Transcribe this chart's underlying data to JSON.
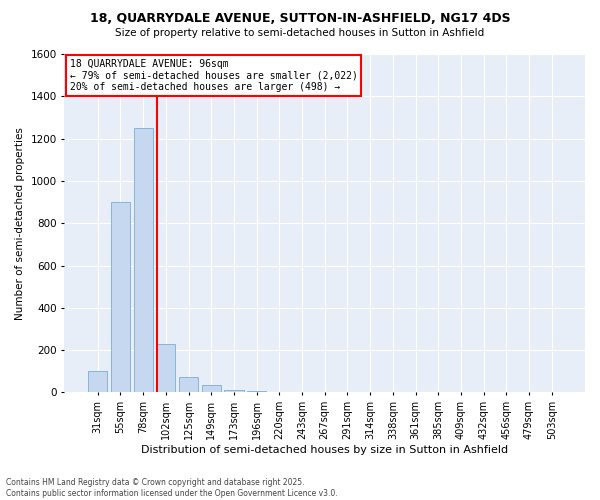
{
  "title1": "18, QUARRYDALE AVENUE, SUTTON-IN-ASHFIELD, NG17 4DS",
  "title2": "Size of property relative to semi-detached houses in Sutton in Ashfield",
  "xlabel": "Distribution of semi-detached houses by size in Sutton in Ashfield",
  "ylabel": "Number of semi-detached properties",
  "categories": [
    "31sqm",
    "55sqm",
    "78sqm",
    "102sqm",
    "125sqm",
    "149sqm",
    "173sqm",
    "196sqm",
    "220sqm",
    "243sqm",
    "267sqm",
    "291sqm",
    "314sqm",
    "338sqm",
    "361sqm",
    "385sqm",
    "409sqm",
    "432sqm",
    "456sqm",
    "479sqm",
    "503sqm"
  ],
  "values": [
    100,
    900,
    1250,
    230,
    75,
    35,
    10,
    5,
    2,
    0,
    0,
    0,
    0,
    0,
    0,
    0,
    0,
    0,
    0,
    0,
    0
  ],
  "bar_color": "#c5d8f0",
  "bar_edge_color": "#7aadd4",
  "vline_color": "red",
  "ylim": [
    0,
    1600
  ],
  "yticks": [
    0,
    200,
    400,
    600,
    800,
    1000,
    1200,
    1400,
    1600
  ],
  "annotation_title": "18 QUARRYDALE AVENUE: 96sqm",
  "annotation_line1": "← 79% of semi-detached houses are smaller (2,022)",
  "annotation_line2": "20% of semi-detached houses are larger (498) →",
  "bg_color": "#e8eef8",
  "footer1": "Contains HM Land Registry data © Crown copyright and database right 2025.",
  "footer2": "Contains public sector information licensed under the Open Government Licence v3.0."
}
